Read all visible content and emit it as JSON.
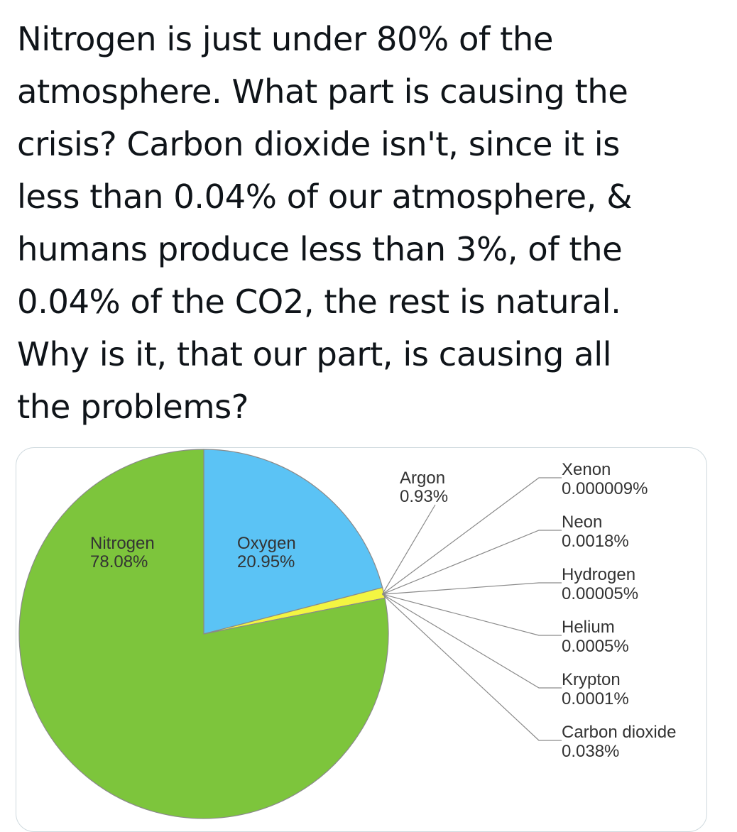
{
  "tweet": {
    "lines": [
      "Nitrogen is just under 80% of the",
      "atmosphere. What part is causing the",
      "crisis? Carbon dioxide isn't, since it is",
      "less than 0.04% of our atmosphere, &",
      "humans produce less than 3%, of the",
      "0.04% of the CO2, the rest is natural.",
      "Why is it, that our part, is causing all",
      "the problems?"
    ]
  },
  "chart_data": {
    "type": "pie",
    "title": "",
    "series": [
      {
        "name": "Nitrogen",
        "value_label": "78.08%",
        "value": 78.08,
        "color": "#7dc53c"
      },
      {
        "name": "Oxygen",
        "value_label": "20.95%",
        "value": 20.95,
        "color": "#5bc3f5"
      },
      {
        "name": "Argon",
        "value_label": "0.93%",
        "value": 0.93,
        "color": "#f3f542"
      }
    ],
    "trace_gases": [
      {
        "name": "Xenon",
        "value_label": "0.000009%",
        "value": 9e-06
      },
      {
        "name": "Neon",
        "value_label": "0.0018%",
        "value": 0.0018
      },
      {
        "name": "Hydrogen",
        "value_label": "0.00005%",
        "value": 5e-05
      },
      {
        "name": "Helium",
        "value_label": "0.0005%",
        "value": 0.0005
      },
      {
        "name": "Krypton",
        "value_label": "0.0001%",
        "value": 0.0001
      },
      {
        "name": "Carbon dioxide",
        "value_label": "0.038%",
        "value": 0.038
      }
    ],
    "colors": {
      "outline": "#8a8a8a",
      "label_text": "#333333"
    }
  }
}
